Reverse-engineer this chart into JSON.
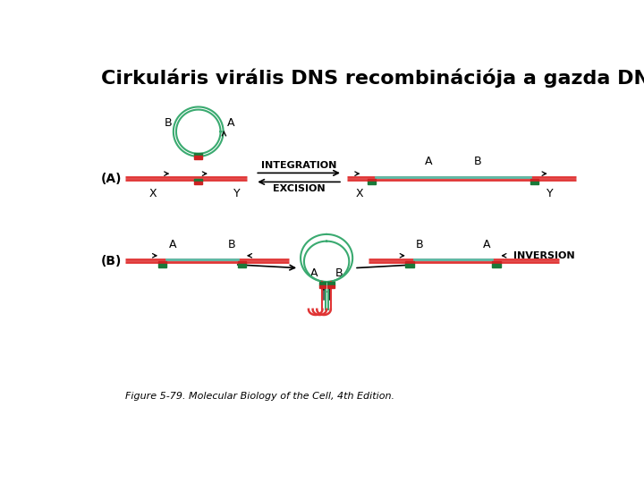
{
  "title": "Cirkuláris virális DNS recombinációja a gazda DNS-sel",
  "title_fontsize": 16,
  "title_fontweight": "bold",
  "background_color": "#ffffff",
  "figure_caption": "Figure 5-79. Molecular Biology of the Cell, 4th Edition.",
  "colors": {
    "green_line": "#3aaa70",
    "red_line": "#e03535",
    "dark_green_box": "#1a7a3a",
    "red_box": "#cc2222",
    "teal_line": "#5abfaa",
    "arrow_color": "#000000"
  },
  "label_A": "(A)",
  "label_B": "(B)",
  "integration_text": "INTEGRATION",
  "excision_text": "EXCISION",
  "inversion_text": "INVERSION"
}
